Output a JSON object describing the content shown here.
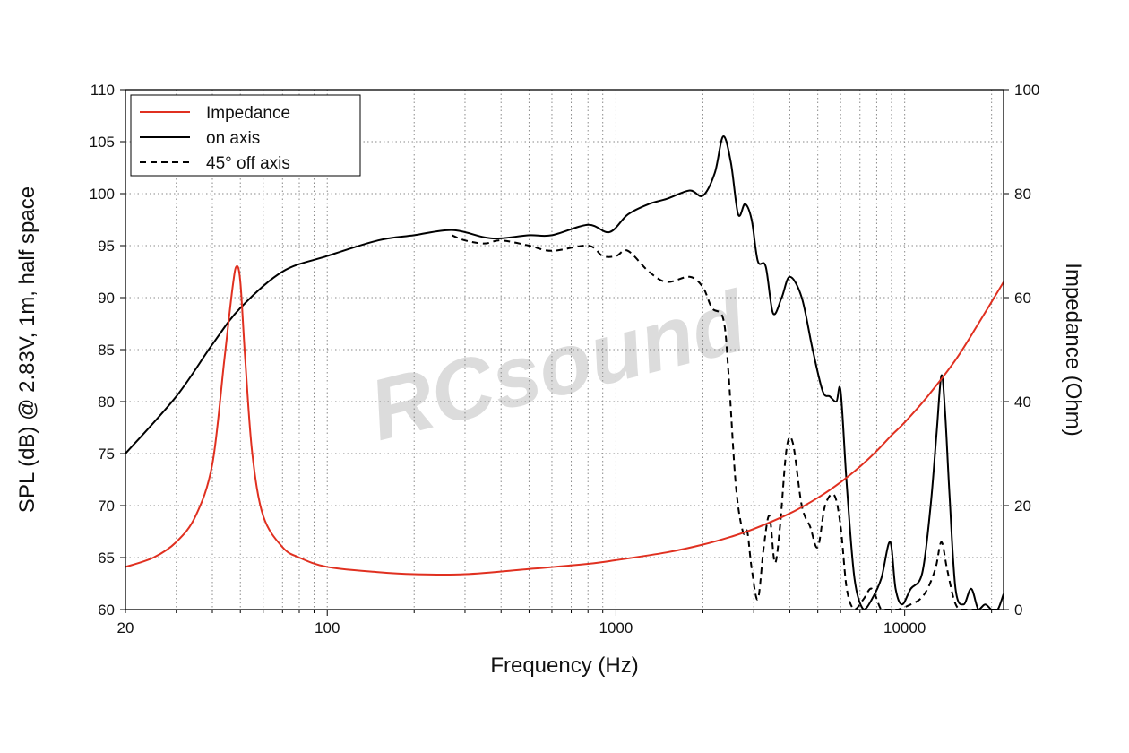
{
  "chart_data": {
    "type": "line",
    "xlabel": "Frequency (Hz)",
    "ylabel": "SPL (dB) @ 2.83V, 1m, half space",
    "y2label": "Impedance (Ohm)",
    "xscale": "log",
    "xlim": [
      20,
      22000
    ],
    "ylim": [
      60,
      110
    ],
    "y2lim": [
      0,
      100
    ],
    "grid": true,
    "legend_position": "top-left",
    "watermark": "RCsound",
    "x_ticks": [
      {
        "value": 20,
        "label": "20"
      },
      {
        "value": 100,
        "label": "100"
      },
      {
        "value": 1000,
        "label": "1000"
      },
      {
        "value": 10000,
        "label": "10000"
      }
    ],
    "y_ticks": [
      60,
      65,
      70,
      75,
      80,
      85,
      90,
      95,
      100,
      105,
      110
    ],
    "y2_ticks": [
      0,
      20,
      40,
      60,
      80,
      100
    ],
    "series": [
      {
        "name": "Impedance",
        "axis": "right",
        "color": "#e03020",
        "style": "solid",
        "x": [
          20,
          25,
          30,
          35,
          40,
          44,
          47,
          48.5,
          50,
          52,
          55,
          60,
          70,
          80,
          100,
          150,
          200,
          300,
          500,
          800,
          1000,
          1500,
          2000,
          2500,
          3000,
          4000,
          5000,
          6000,
          7000,
          8000,
          9000,
          10000,
          12000,
          15000,
          18000,
          22000
        ],
        "values": [
          8.2,
          10,
          13,
          18,
          28,
          48,
          62,
          66,
          63,
          48,
          30,
          18,
          12,
          10,
          8.2,
          7.2,
          6.8,
          6.8,
          7.8,
          8.8,
          9.5,
          11,
          12.5,
          14,
          15.5,
          18.5,
          21.5,
          24.5,
          27.5,
          30.5,
          33.5,
          36,
          41,
          48,
          55,
          63
        ]
      },
      {
        "name": "on axis",
        "axis": "left",
        "color": "#000000",
        "style": "solid",
        "x": [
          20,
          30,
          40,
          50,
          70,
          100,
          150,
          200,
          270,
          350,
          400,
          500,
          600,
          800,
          950,
          1100,
          1300,
          1500,
          1800,
          2000,
          2200,
          2350,
          2500,
          2650,
          2800,
          2950,
          3100,
          3300,
          3500,
          3750,
          4000,
          4400,
          4800,
          5200,
          5500,
          5800,
          6000,
          6300,
          6700,
          7200,
          7700,
          8300,
          8900,
          9300,
          9800,
          10500,
          11500,
          12300,
          12900,
          13400,
          13800,
          14300,
          15000,
          16000,
          17000,
          18000,
          19000,
          20000,
          21000,
          22000
        ],
        "values": [
          75,
          80.5,
          85.5,
          89,
          92.5,
          94,
          95.5,
          96,
          96.5,
          95.8,
          95.7,
          96,
          96,
          97,
          96.3,
          98,
          99,
          99.5,
          100.3,
          99.8,
          102,
          105.5,
          103,
          98,
          99,
          97.5,
          93.5,
          93,
          88.5,
          90,
          92,
          90,
          85,
          81,
          80.5,
          80,
          81,
          72,
          63,
          60,
          61,
          63,
          66.5,
          62,
          60.5,
          62,
          63.5,
          70,
          77,
          82.5,
          79,
          71,
          62,
          60.5,
          62,
          60,
          60.5,
          60,
          60,
          61.5
        ]
      },
      {
        "name": "45° off axis",
        "axis": "left",
        "color": "#000000",
        "style": "dashed",
        "x": [
          270,
          300,
          350,
          400,
          500,
          600,
          800,
          900,
          1000,
          1100,
          1300,
          1500,
          1800,
          2000,
          2150,
          2350,
          2450,
          2600,
          2750,
          2850,
          2950,
          3100,
          3250,
          3400,
          3550,
          3700,
          3900,
          4100,
          4400,
          4700,
          5000,
          5300,
          5700,
          6000,
          6300,
          6700,
          7200,
          7700,
          8300,
          8900,
          9500,
          10500,
          11300,
          12000,
          12800,
          13400,
          14000,
          14800,
          15500,
          16500,
          17500,
          18500,
          19500,
          20500,
          22000
        ],
        "values": [
          96,
          95.5,
          95.2,
          95.5,
          95,
          94.5,
          95,
          94,
          94,
          94.5,
          92.5,
          91.5,
          92,
          91,
          89,
          88,
          83,
          72,
          67.5,
          67.5,
          64,
          61,
          66,
          69,
          64.5,
          68,
          75.5,
          76,
          70,
          68,
          66,
          70,
          71,
          68,
          62,
          60,
          61,
          62,
          60,
          60,
          60,
          60.5,
          61,
          62,
          64,
          66.5,
          64,
          61,
          60,
          60,
          60,
          60,
          60,
          60,
          60
        ]
      }
    ]
  }
}
